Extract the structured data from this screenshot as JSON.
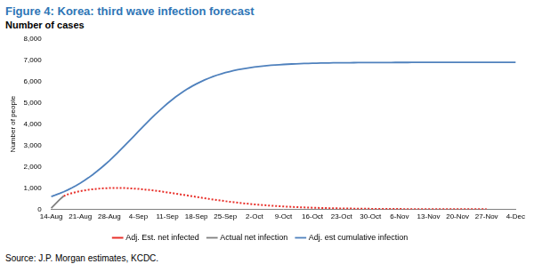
{
  "chart_data": {
    "type": "line",
    "title": "Figure 4: Korea: third wave infection forecast",
    "subtitle": "Number of cases",
    "y_label": "Number of people",
    "source": "Source: J.P. Morgan estimates, KCDC.",
    "categories": [
      "14-Aug",
      null,
      null,
      null,
      null,
      null,
      null,
      "21-Aug",
      null,
      null,
      null,
      null,
      null,
      null,
      "28-Aug",
      null,
      null,
      null,
      null,
      null,
      null,
      "4-Sep",
      null,
      null,
      null,
      null,
      null,
      null,
      "11-Sep",
      null,
      null,
      null,
      null,
      null,
      null,
      "18-Sep",
      null,
      null,
      null,
      null,
      null,
      null,
      "25-Sep",
      null,
      null,
      null,
      null,
      null,
      null,
      "2-Oct",
      null,
      null,
      null,
      null,
      null,
      null,
      "9-Oct",
      null,
      null,
      null,
      null,
      null,
      null,
      "16-Oct",
      null,
      null,
      null,
      null,
      null,
      null,
      "23-Oct",
      null,
      null,
      null,
      null,
      null,
      null,
      "30-Oct",
      null,
      null,
      null,
      null,
      null,
      null,
      "6-Nov",
      null,
      null,
      null,
      null,
      null,
      null,
      "13-Nov",
      null,
      null,
      null,
      null,
      null,
      null,
      "20-Nov",
      null,
      null,
      null,
      null,
      null,
      null,
      "27-Nov",
      null,
      null,
      null,
      null,
      null,
      null,
      "4-Dec"
    ],
    "series": [
      {
        "name": "Adj. Est. net infected",
        "color": "#e8302a",
        "line_style": "dotted",
        "marker": "none",
        "values": [
          null,
          null,
          null,
          620,
          700,
          760,
          810,
          850,
          885,
          915,
          940,
          960,
          975,
          988,
          996,
          1000,
          1000,
          998,
          992,
          983,
          970,
          955,
          938,
          918,
          896,
          872,
          847,
          820,
          792,
          763,
          733,
          703,
          672,
          641,
          610,
          579,
          548,
          518,
          488,
          459,
          431,
          404,
          378,
          353,
          330,
          307,
          286,
          266,
          247,
          229,
          212,
          196,
          181,
          167,
          154,
          142,
          131,
          121,
          111,
          102,
          94,
          86,
          79,
          73,
          67,
          62,
          57,
          52,
          48,
          44,
          40,
          37,
          34,
          31,
          28,
          26,
          24,
          22,
          20,
          18,
          17,
          15,
          14,
          13,
          12,
          11,
          10,
          9,
          8,
          8,
          7,
          6,
          6,
          5,
          5,
          5,
          4,
          4,
          4,
          3,
          3,
          3,
          3,
          2,
          2,
          2,
          null,
          null,
          null,
          null,
          null,
          null,
          null
        ]
      },
      {
        "name": "Actual net infection",
        "color": "#7f7f7f",
        "line_style": "solid",
        "marker": "none",
        "values": [
          50,
          250,
          450,
          620,
          null,
          null,
          null,
          null,
          null,
          null,
          null,
          null,
          null,
          null,
          null,
          null,
          null,
          null,
          null,
          null,
          null,
          null,
          null,
          null,
          null,
          null,
          null,
          null,
          null,
          null,
          null,
          null,
          null,
          null,
          null,
          null,
          null,
          null,
          null,
          null,
          null,
          null,
          null,
          null,
          null,
          null,
          null,
          null,
          null,
          null,
          null,
          null,
          null,
          null,
          null,
          null,
          null,
          null,
          null,
          null,
          null,
          null,
          null,
          null,
          null,
          null,
          null,
          null,
          null,
          null,
          null,
          null,
          null,
          null,
          null,
          null,
          null,
          null,
          null,
          null,
          null,
          null,
          null,
          null,
          null,
          null,
          null,
          null,
          null,
          null,
          null,
          null,
          null,
          null,
          null,
          null,
          null,
          null,
          null,
          null,
          null,
          null,
          null,
          null,
          null,
          null,
          null,
          null,
          null,
          null,
          null,
          null,
          null
        ]
      },
      {
        "name": "Adj. est cumulative infection",
        "color": "#4f81bd",
        "line_style": "solid",
        "marker": "none",
        "values": [
          599,
          667,
          741,
          822,
          911,
          1009,
          1115,
          1228,
          1353,
          1484,
          1627,
          1778,
          1938,
          2104,
          2277,
          2464,
          2654,
          2851,
          3046,
          3247,
          3450,
          3653,
          3855,
          4052,
          4246,
          4437,
          4618,
          4795,
          4964,
          5122,
          5275,
          5416,
          5547,
          5670,
          5784,
          5887,
          5984,
          6074,
          6155,
          6233,
          6301,
          6361,
          6416,
          6467,
          6512,
          6553,
          6590,
          6623,
          6653,
          6680,
          6704,
          6725,
          6744,
          6761,
          6776,
          6789,
          6801,
          6812,
          6822,
          6831,
          6838,
          6845,
          6851,
          6857,
          6862,
          6866,
          6870,
          6873,
          6876,
          6879,
          6881,
          6883,
          6884,
          6886,
          6887,
          6888,
          6889,
          6890,
          6891,
          6892,
          6893,
          6894,
          6894,
          6895,
          6895,
          6896,
          6896,
          6897,
          6897,
          6897,
          6898,
          6898,
          6898,
          6898,
          6899,
          6899,
          6899,
          6899,
          6899,
          6899,
          6900,
          6900,
          6900,
          6900,
          6900,
          6900,
          6900,
          6900,
          6900,
          6900,
          6900,
          6900,
          6900
        ]
      }
    ],
    "ylim": [
      0,
      8000
    ],
    "yticks": [
      0,
      {
        "value": 1000,
        "label": "1,000"
      },
      {
        "value": 2000,
        "label": "2,000"
      },
      {
        "value": 3000,
        "label": "3,000"
      },
      {
        "value": 4000,
        "label": "4,000"
      },
      {
        "value": 5000,
        "label": "5,000"
      },
      {
        "value": 6000,
        "label": "6,000"
      },
      {
        "value": 7000,
        "label": "7,000"
      },
      {
        "value": 8000,
        "label": "8,000"
      }
    ],
    "grid": false,
    "legend": "bottom"
  }
}
